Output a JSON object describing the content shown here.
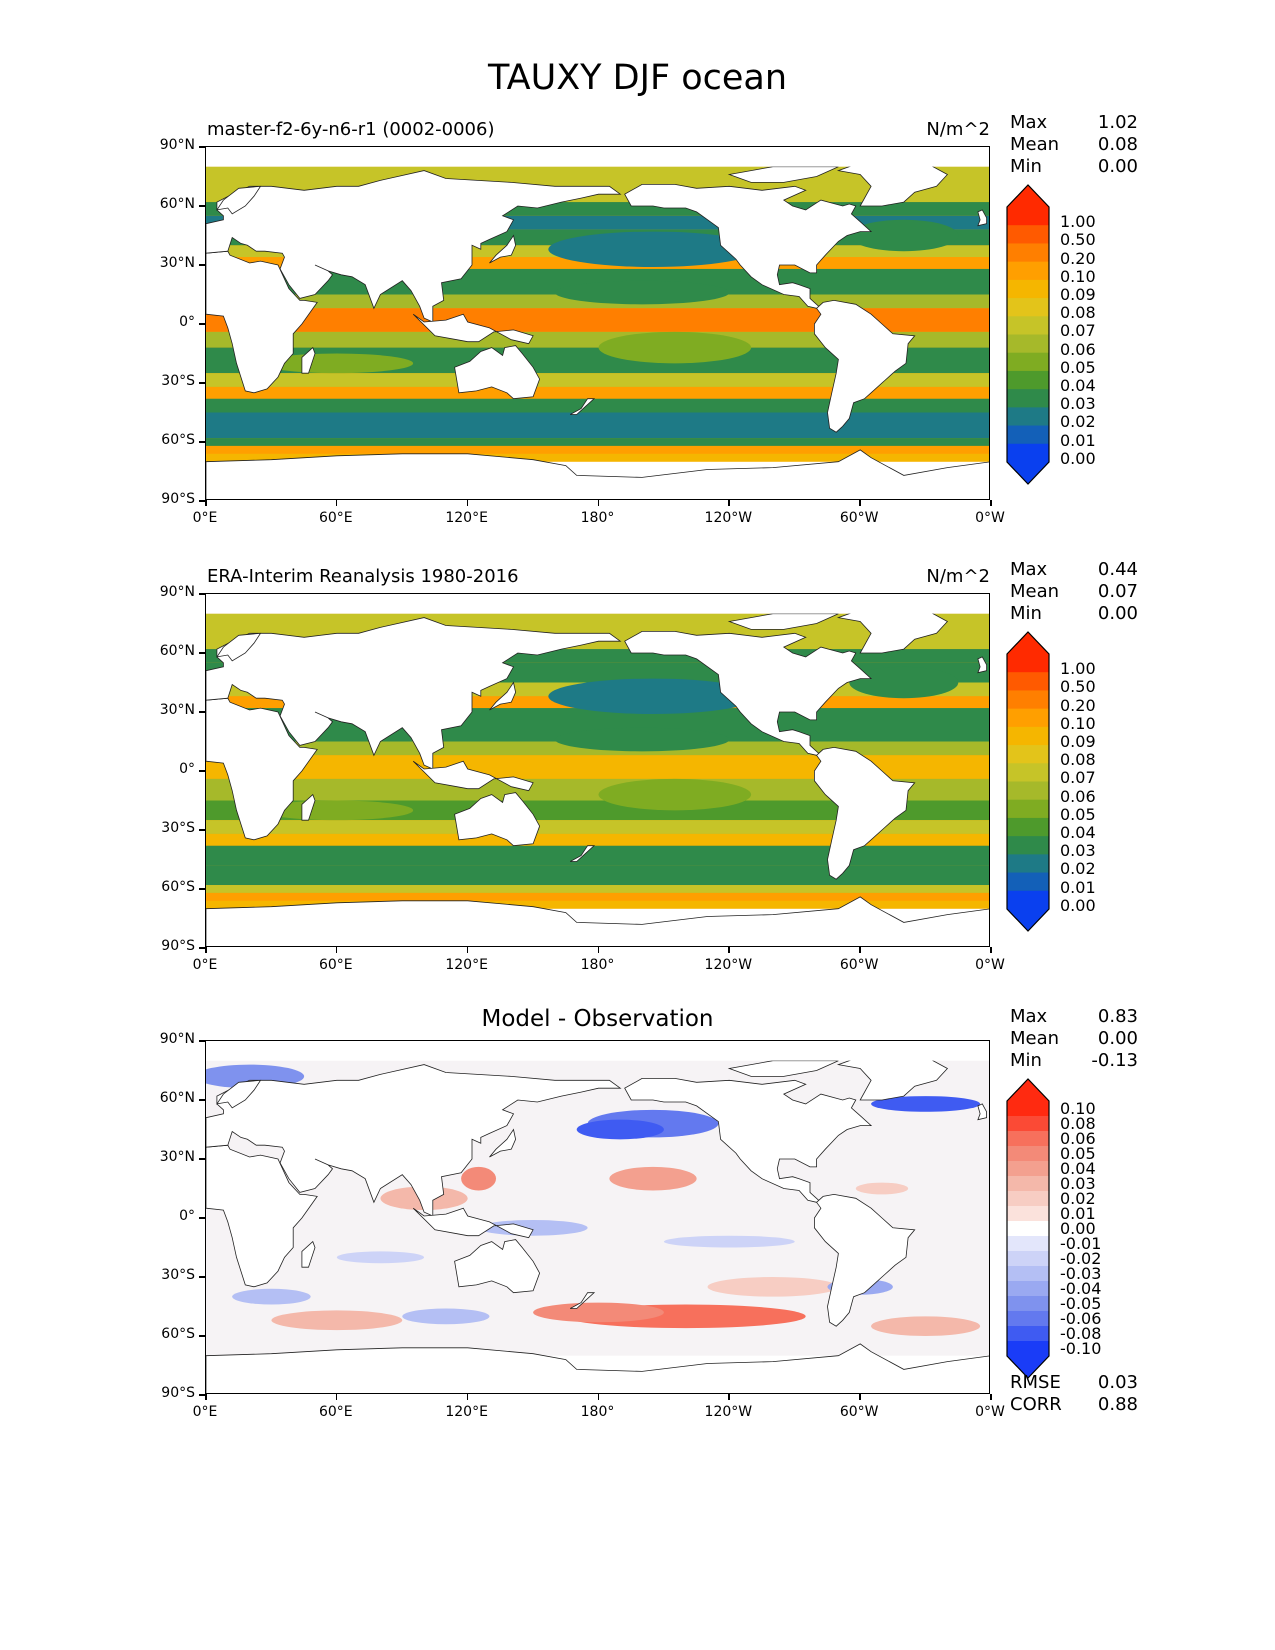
{
  "figure": {
    "title": "TAUXY DJF ocean"
  },
  "axes": {
    "y_ticks": [
      "90°N",
      "60°N",
      "30°N",
      "0°",
      "30°S",
      "60°S",
      "90°S"
    ],
    "x_ticks": [
      "0°E",
      "60°E",
      "120°E",
      "180°",
      "120°W",
      "60°W",
      "0°W"
    ]
  },
  "panels": [
    {
      "left_title": "master-f2-6y-n6-r1 (0002-0006)",
      "center_title": "",
      "right_title": "N/m^2",
      "stats": [
        {
          "label": "Max",
          "value": "1.02"
        },
        {
          "label": "Mean",
          "value": "0.08"
        },
        {
          "label": "Min",
          "value": "0.00"
        }
      ],
      "colorbar": {
        "labels": [
          "1.00",
          "0.50",
          "0.20",
          "0.10",
          "0.09",
          "0.08",
          "0.07",
          "0.06",
          "0.05",
          "0.04",
          "0.03",
          "0.02",
          "0.01",
          "0.00"
        ],
        "colors": [
          "#ff2a00",
          "#ff5a00",
          "#ff7f00",
          "#ff9f00",
          "#f5b600",
          "#e3c41a",
          "#c6c428",
          "#a6b92a",
          "#7fac22",
          "#4e9a2c",
          "#2f8a4a",
          "#1e7a86",
          "#1360b8",
          "#0a40ef"
        ]
      },
      "map_style": "magnitude"
    },
    {
      "left_title": "ERA-Interim Reanalysis 1980-2016",
      "center_title": "",
      "right_title": "N/m^2",
      "stats": [
        {
          "label": "Max",
          "value": "0.44"
        },
        {
          "label": "Mean",
          "value": "0.07"
        },
        {
          "label": "Min",
          "value": "0.00"
        }
      ],
      "colorbar": {
        "labels": [
          "1.00",
          "0.50",
          "0.20",
          "0.10",
          "0.09",
          "0.08",
          "0.07",
          "0.06",
          "0.05",
          "0.04",
          "0.03",
          "0.02",
          "0.01",
          "0.00"
        ],
        "colors": [
          "#ff2a00",
          "#ff5a00",
          "#ff7f00",
          "#ff9f00",
          "#f5b600",
          "#e3c41a",
          "#c6c428",
          "#a6b92a",
          "#7fac22",
          "#4e9a2c",
          "#2f8a4a",
          "#1e7a86",
          "#1360b8",
          "#0a40ef"
        ]
      },
      "map_style": "magnitude"
    },
    {
      "left_title": "",
      "center_title": "Model - Observation",
      "right_title": "",
      "stats": [
        {
          "label": "Max",
          "value": "0.83"
        },
        {
          "label": "Mean",
          "value": "0.00"
        },
        {
          "label": "Min",
          "value": "-0.13"
        }
      ],
      "bottom_stats": [
        {
          "label": "RMSE",
          "value": "0.03"
        },
        {
          "label": "CORR",
          "value": "0.88"
        }
      ],
      "colorbar": {
        "labels": [
          "0.10",
          "0.08",
          "0.06",
          "0.05",
          "0.04",
          "0.03",
          "0.02",
          "0.01",
          "0.00",
          "-0.01",
          "-0.02",
          "-0.03",
          "-0.04",
          "-0.05",
          "-0.06",
          "-0.08",
          "-0.10"
        ],
        "colors": [
          "#ff2a10",
          "#fb4a35",
          "#f7705c",
          "#f38a78",
          "#f3a08f",
          "#f4b8aa",
          "#f7cdc3",
          "#fbe2dc",
          "#ffffff",
          "#e3e6fb",
          "#cdd3f7",
          "#b4bff4",
          "#9aa9f1",
          "#7f92ee",
          "#6379ef",
          "#3f5bf2",
          "#1a3cf7"
        ]
      },
      "map_style": "diff"
    }
  ]
}
